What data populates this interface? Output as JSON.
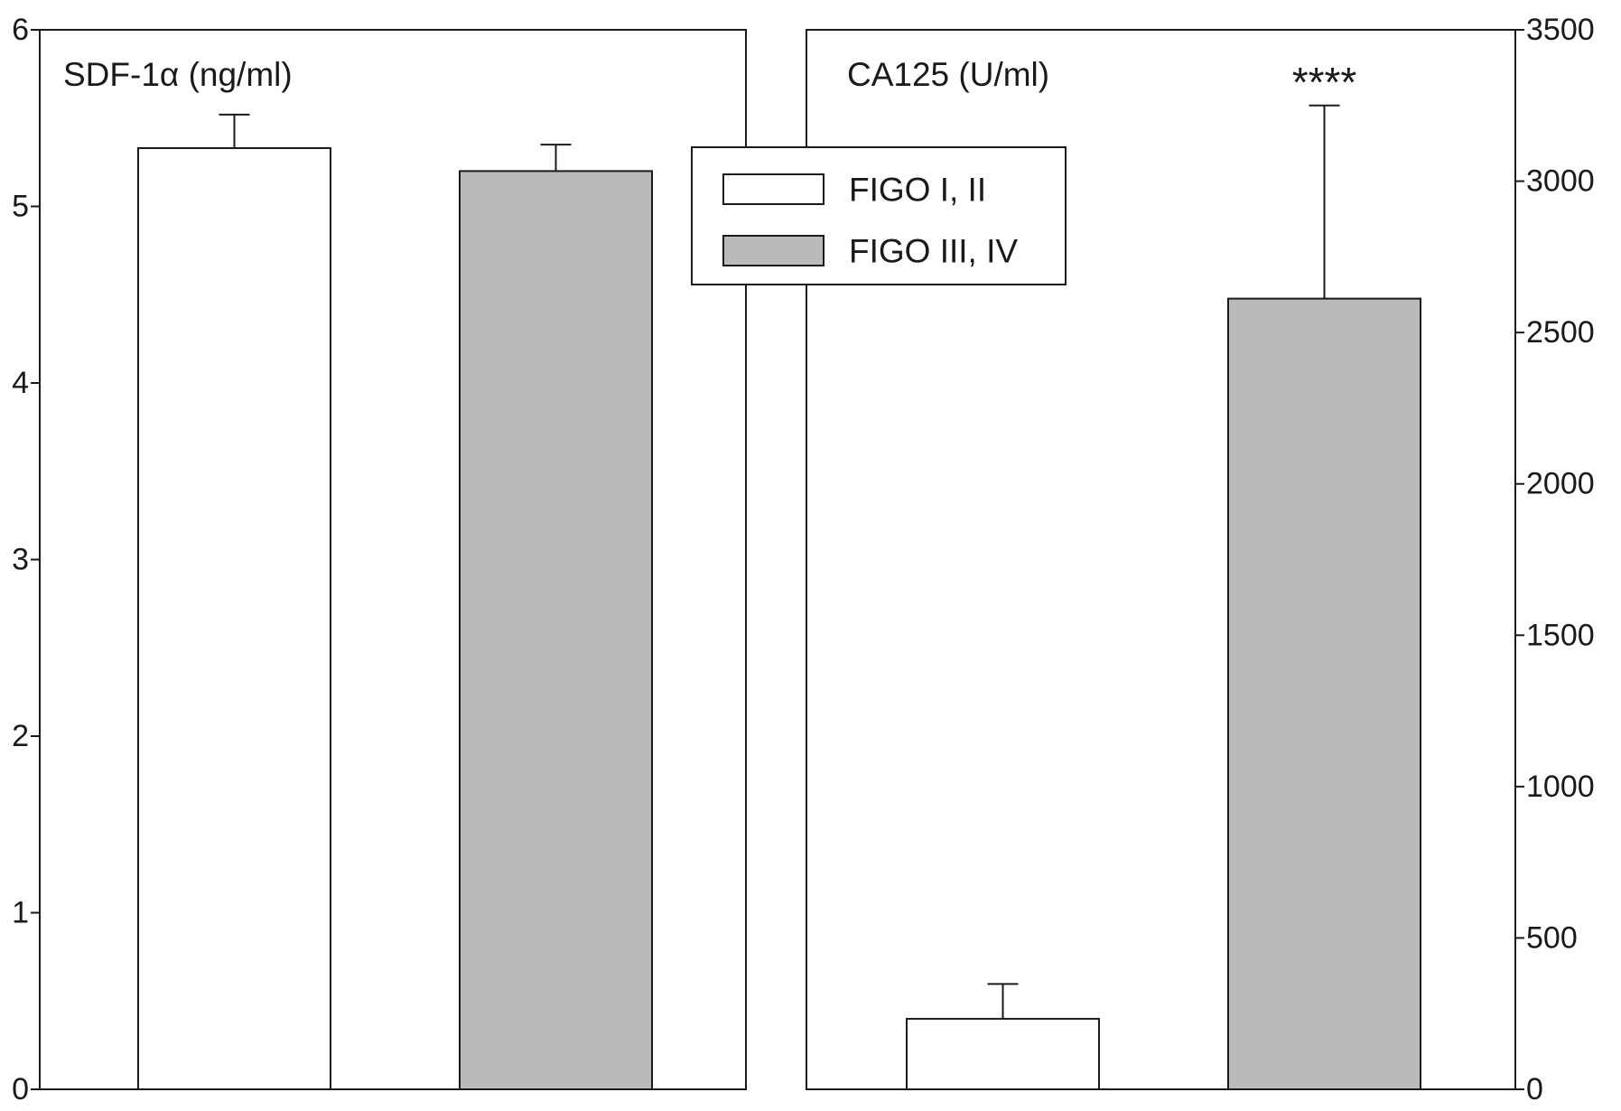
{
  "chart_data": [
    {
      "type": "bar",
      "title": "SDF-1α (ng/ml)",
      "y_axis_side": "left",
      "ylim": [
        0,
        6
      ],
      "ticks": [
        0,
        1,
        2,
        3,
        4,
        5,
        6
      ],
      "tick_labels": [
        "0",
        "1",
        "2",
        "3",
        "4",
        "5",
        "6"
      ],
      "categories": [
        "FIGO I, II",
        "FIGO III, IV"
      ],
      "values": [
        5.33,
        5.2
      ],
      "errors": [
        0.19,
        0.15
      ],
      "annotations": [
        "",
        ""
      ]
    },
    {
      "type": "bar",
      "title": "CA125 (U/ml)",
      "y_axis_side": "right",
      "ylim": [
        0,
        3500
      ],
      "ticks": [
        0,
        500,
        1000,
        1500,
        2000,
        2500,
        3000,
        3500
      ],
      "tick_labels": [
        "0",
        "500",
        "1000",
        "1500",
        "2000",
        "2500",
        "3000",
        "3500"
      ],
      "categories": [
        "FIGO I, II",
        "FIGO III, IV"
      ],
      "values": [
        233,
        2612
      ],
      "errors": [
        115,
        638
      ],
      "annotations": [
        "",
        "****"
      ]
    }
  ],
  "legend": {
    "placement": "top-center",
    "items": [
      {
        "label": "FIGO I, II",
        "color": "#ffffff"
      },
      {
        "label": "FIGO III, IV",
        "color": "#bababa"
      }
    ]
  },
  "colors": [
    "#ffffff",
    "#bababa"
  ],
  "stroke_color": "#1a1a1a"
}
